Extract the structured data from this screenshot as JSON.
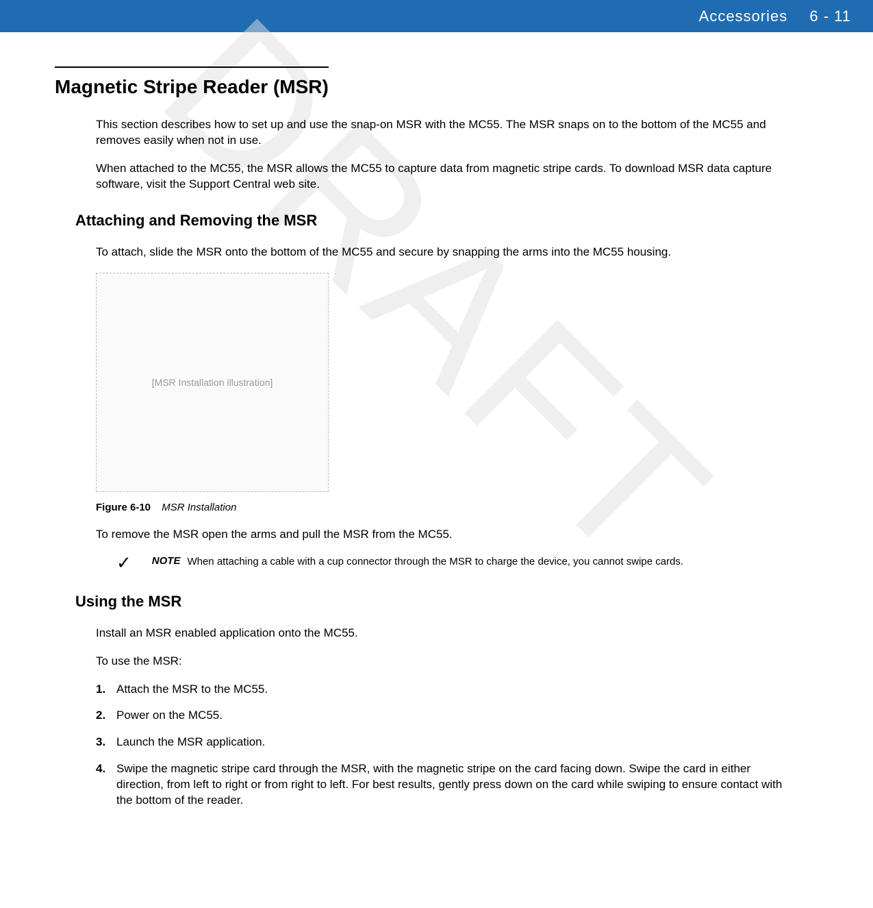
{
  "header": {
    "chapter": "Accessories",
    "page": "6 - 11",
    "bg_color": "#1f6cb3",
    "text_color": "#ffffff"
  },
  "watermark": "DRAFT",
  "h1": "Magnetic Stripe Reader (MSR)",
  "intro_p1": "This section describes how to set up and use the snap-on MSR with the MC55. The MSR snaps on to the bottom of the MC55 and removes easily when not in use.",
  "intro_p2": "When attached to the MC55, the MSR allows the MC55 to capture data from magnetic stripe cards. To download MSR data capture software, visit the Support Central web site.",
  "h2_attach": "Attaching and Removing the MSR",
  "attach_p1": "To attach, slide the MSR onto the bottom of the MC55 and secure by snapping the arms into the MC55 housing.",
  "figure": {
    "label": "Figure 6-10",
    "title": "MSR Installation",
    "alt": "[MSR Installation illustration]"
  },
  "remove_p": "To remove the MSR open the arms and pull the MSR from the MC55.",
  "note": {
    "label": "NOTE",
    "text": "When attaching a cable with a cup connector through the MSR to charge the device, you cannot swipe cards."
  },
  "h2_using": "Using the MSR",
  "using_p1": "Install an MSR enabled application onto the MC55.",
  "using_p2": "To use the MSR:",
  "steps": [
    {
      "num": "1.",
      "text": "Attach the MSR to the MC55."
    },
    {
      "num": "2.",
      "text": "Power on the MC55."
    },
    {
      "num": "3.",
      "text": "Launch the MSR application."
    },
    {
      "num": "4.",
      "text": "Swipe the magnetic stripe card through the MSR, with the magnetic stripe on the card facing down. Swipe the card in either direction, from left to right or from right to left. For best results, gently press down on the card while swiping to ensure contact with the bottom of the reader."
    }
  ]
}
